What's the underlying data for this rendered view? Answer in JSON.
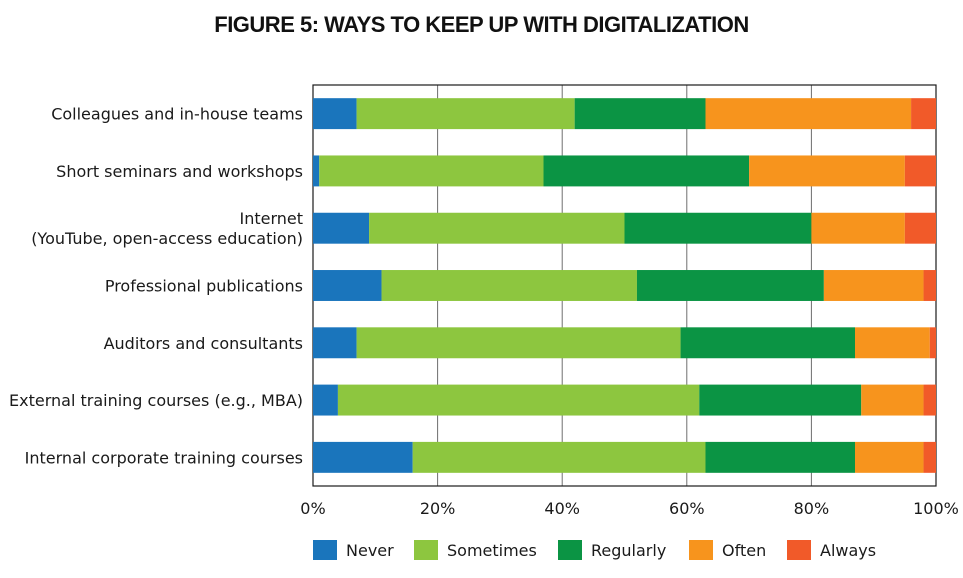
{
  "chart_data": {
    "type": "bar",
    "orientation": "horizontal",
    "stacked": true,
    "title": "FIGURE 5: WAYS TO KEEP UP WITH DIGITALIZATION",
    "categories": [
      [
        "Colleagues and in-house teams"
      ],
      [
        "Short seminars and workshops"
      ],
      [
        "Internet",
        "(YouTube, open-access education)"
      ],
      [
        "Professional publications"
      ],
      [
        "Auditors and consultants"
      ],
      [
        "External training courses (e.g., MBA)"
      ],
      [
        "Internal corporate training courses"
      ]
    ],
    "series": [
      {
        "name": "Never",
        "color": "#1a75bc",
        "values": [
          7,
          1,
          9,
          11,
          7,
          4,
          16
        ]
      },
      {
        "name": "Sometimes",
        "color": "#8dc63f",
        "values": [
          35,
          36,
          41,
          41,
          52,
          58,
          47
        ]
      },
      {
        "name": "Regularly",
        "color": "#0b9444",
        "values": [
          21,
          33,
          30,
          30,
          28,
          26,
          24
        ]
      },
      {
        "name": "Often",
        "color": "#f7941d",
        "values": [
          33,
          25,
          15,
          16,
          12,
          10,
          11
        ]
      },
      {
        "name": "Always",
        "color": "#f15a29",
        "values": [
          4,
          5,
          5,
          2,
          1,
          2,
          2
        ]
      }
    ],
    "xticks": [
      "0%",
      "20%",
      "40%",
      "60%",
      "80%",
      "100%"
    ],
    "xlim": [
      0,
      100
    ],
    "grid": "vertical",
    "legend_position": "bottom"
  }
}
